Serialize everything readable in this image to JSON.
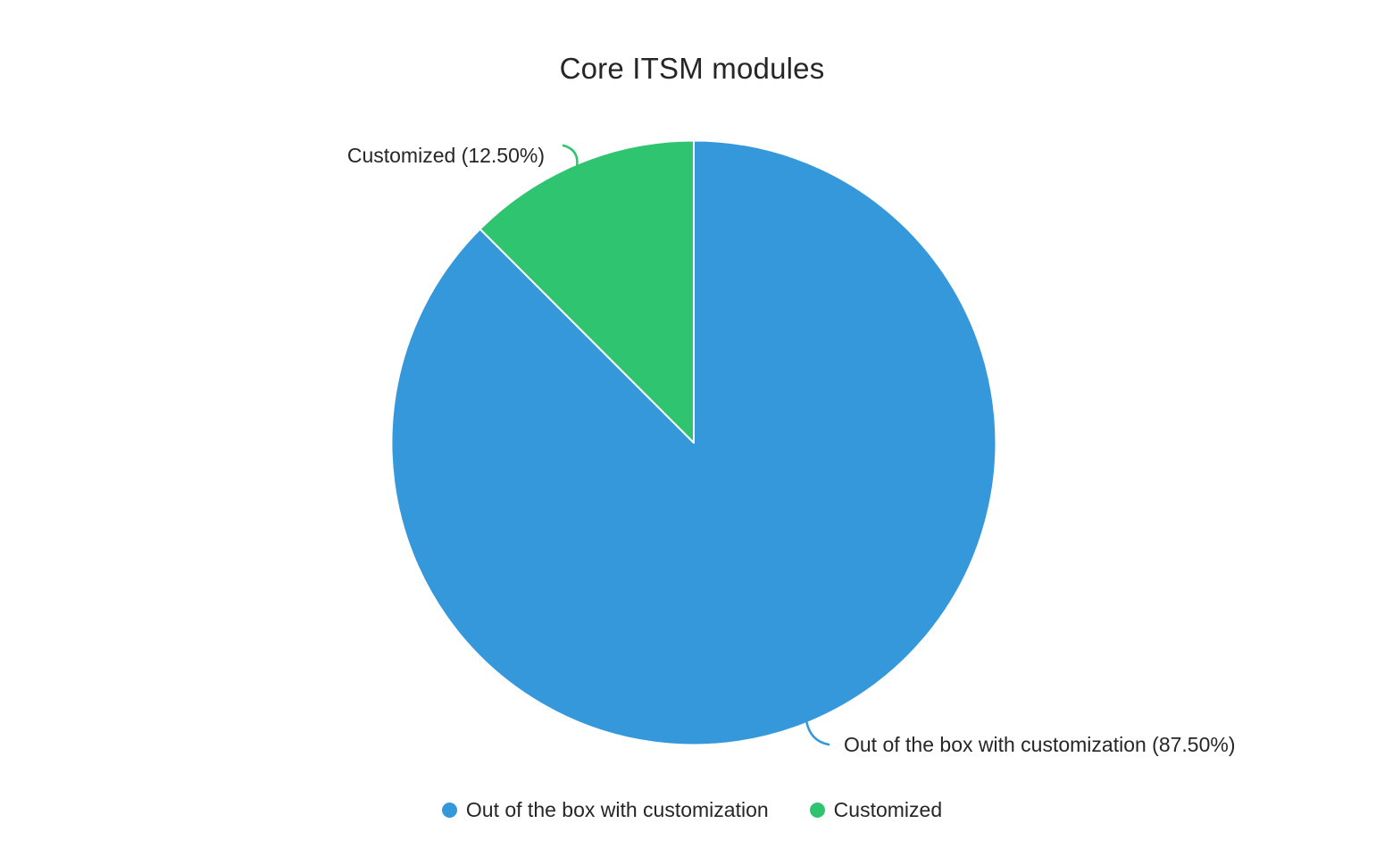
{
  "title": "Core ITSM modules",
  "chart_data": {
    "type": "pie",
    "title": "Core ITSM modules",
    "start_angle_deg": 0,
    "direction": "clockwise",
    "legend_position": "bottom",
    "slices": [
      {
        "label": "Out of the box with customization",
        "value": 87.5,
        "percent_label": "Out of the box with customization (87.50%)",
        "color": "#3598DB"
      },
      {
        "label": "Customized",
        "value": 12.5,
        "percent_label": "Customized (12.50%)",
        "color": "#2FC46F"
      }
    ]
  },
  "callouts": {
    "customized": "Customized (12.50%)",
    "out_of_box": "Out of the box with customization (87.50%)"
  },
  "legend": {
    "items": [
      {
        "label": "Out of the box with customization",
        "color": "#3598DB"
      },
      {
        "label": "Customized",
        "color": "#2FC46F"
      }
    ]
  },
  "colors": {
    "blue": "#3598DB",
    "green": "#2FC46F",
    "text": "#262626",
    "background": "#FFFFFF"
  }
}
